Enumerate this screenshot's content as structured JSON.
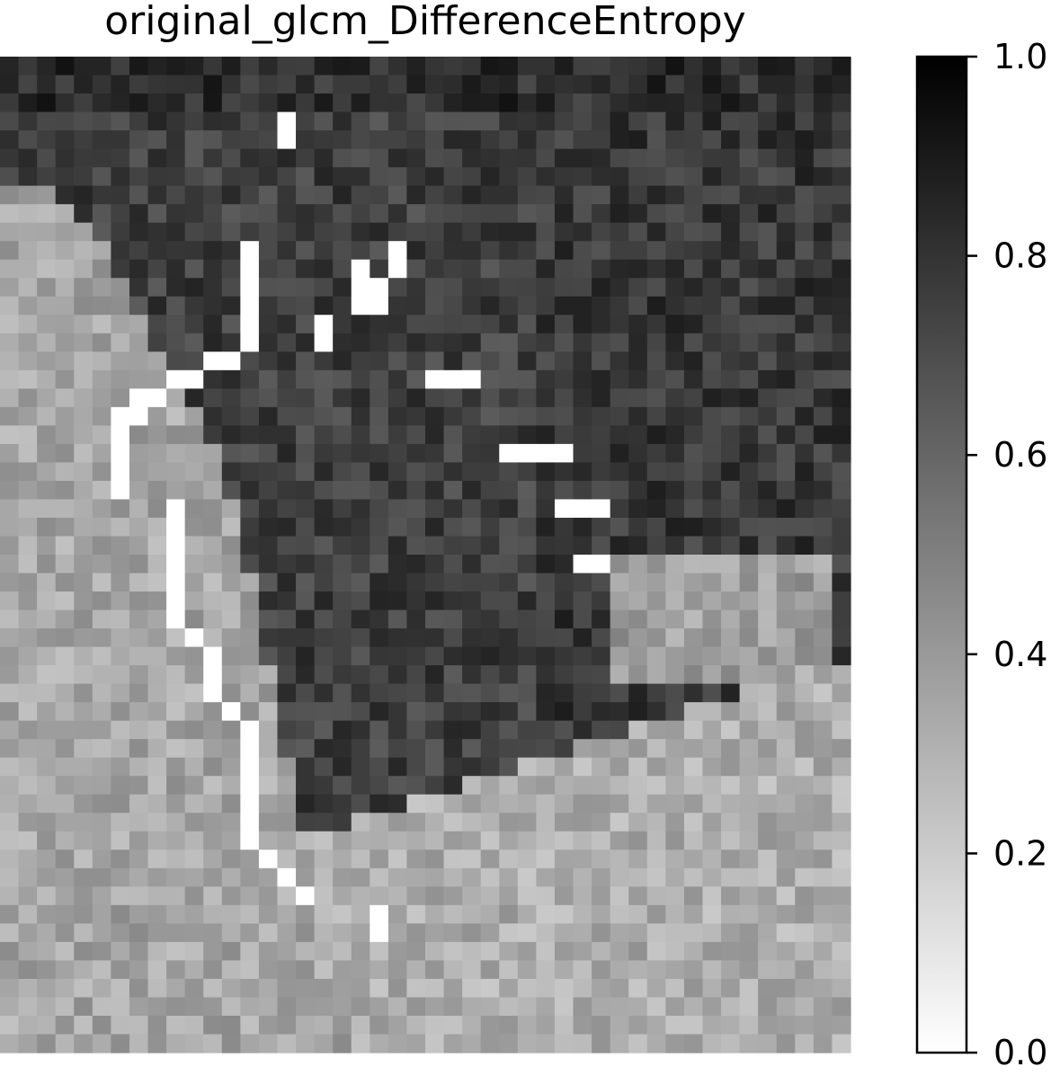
{
  "chart_data": {
    "type": "heatmap",
    "title": "original_glcm_DifferenceEntropy",
    "colormap": "gray_r",
    "vmin": 0.0,
    "vmax": 1.0,
    "rows": 54,
    "cols": 46,
    "axes_visible": false,
    "colorbar": {
      "ticks": [
        0.0,
        0.2,
        0.4,
        0.6,
        0.8,
        1.0
      ],
      "tick_labels": [
        "0.0",
        "0.2",
        "0.4",
        "0.6",
        "0.8",
        "1.0"
      ]
    },
    "regions": {
      "top_dark_band_value": 0.82,
      "left_bright_region_value": 0.35,
      "center_dark_region_value": 0.75,
      "bottom_bright_region_value": 0.32,
      "right_side_value": 0.78,
      "white_edge_value": 0.0
    }
  }
}
